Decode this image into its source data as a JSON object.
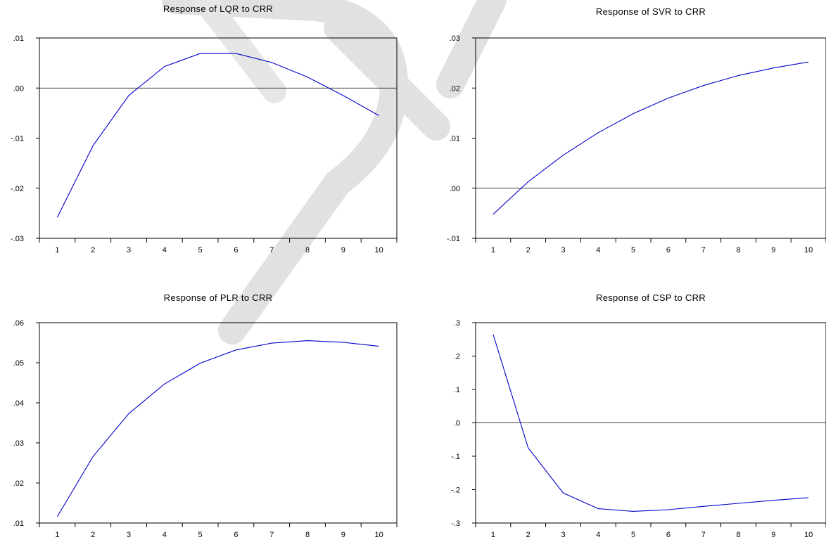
{
  "chart_data": [
    {
      "type": "line",
      "title": "Response of LQR to CRR",
      "x": [
        1,
        2,
        3,
        4,
        5,
        6,
        7,
        8,
        9,
        10
      ],
      "series": [
        {
          "values": [
            -0.0258,
            -0.0115,
            -0.0015,
            0.0043,
            0.0069,
            0.0069,
            0.0051,
            0.0022,
            -0.0015,
            -0.0055
          ]
        }
      ],
      "xlim": [
        0.5,
        10.5
      ],
      "ylim": [
        -0.03,
        0.01
      ],
      "yticks": [
        -0.03,
        -0.02,
        -0.01,
        0.0,
        0.01
      ],
      "ytick_labels": [
        "-.03",
        "-.02",
        "-.01",
        ".00",
        ".01"
      ],
      "xticks": [
        1,
        2,
        3,
        4,
        5,
        6,
        7,
        8,
        9,
        10
      ],
      "xtick_labels": [
        "1",
        "2",
        "3",
        "4",
        "5",
        "6",
        "7",
        "8",
        "9",
        "10"
      ],
      "zero_line": true,
      "grid": false,
      "line_color": "#0000cc"
    },
    {
      "type": "line",
      "title": "Response of SVR to CRR",
      "x": [
        1,
        2,
        3,
        4,
        5,
        6,
        7,
        8,
        9,
        10
      ],
      "series": [
        {
          "values": [
            -0.0052,
            0.0013,
            0.0066,
            0.0111,
            0.0149,
            0.018,
            0.0205,
            0.0225,
            0.024,
            0.0252
          ]
        }
      ],
      "xlim": [
        0.5,
        10.5
      ],
      "ylim": [
        -0.01,
        0.03
      ],
      "yticks": [
        -0.01,
        0.0,
        0.01,
        0.02,
        0.03
      ],
      "ytick_labels": [
        "-.01",
        ".00",
        ".01",
        ".02",
        ".03"
      ],
      "xticks": [
        1,
        2,
        3,
        4,
        5,
        6,
        7,
        8,
        9,
        10
      ],
      "xtick_labels": [
        "1",
        "2",
        "3",
        "4",
        "5",
        "6",
        "7",
        "8",
        "9",
        "10"
      ],
      "zero_line": true,
      "grid": false,
      "line_color": "#0000cc"
    },
    {
      "type": "line",
      "title": "Response of PLR to CRR",
      "x": [
        1,
        2,
        3,
        4,
        5,
        6,
        7,
        8,
        9,
        10
      ],
      "series": [
        {
          "values": [
            0.0116,
            0.0266,
            0.0373,
            0.0447,
            0.0499,
            0.0532,
            0.0549,
            0.0555,
            0.0551,
            0.0541
          ]
        }
      ],
      "xlim": [
        0.5,
        10.5
      ],
      "ylim": [
        0.01,
        0.06
      ],
      "yticks": [
        0.01,
        0.02,
        0.03,
        0.04,
        0.05,
        0.06
      ],
      "ytick_labels": [
        ".01",
        ".02",
        ".03",
        ".04",
        ".05",
        ".06"
      ],
      "xticks": [
        1,
        2,
        3,
        4,
        5,
        6,
        7,
        8,
        9,
        10
      ],
      "xtick_labels": [
        "1",
        "2",
        "3",
        "4",
        "5",
        "6",
        "7",
        "8",
        "9",
        "10"
      ],
      "zero_line": false,
      "grid": false,
      "line_color": "#0000cc"
    },
    {
      "type": "line",
      "title": "Response of CSP to CRR",
      "x": [
        1,
        2,
        3,
        4,
        5,
        6,
        7,
        8,
        9,
        10
      ],
      "series": [
        {
          "values": [
            0.265,
            -0.075,
            -0.21,
            -0.257,
            -0.265,
            -0.26,
            -0.25,
            -0.241,
            -0.232,
            -0.224
          ]
        }
      ],
      "xlim": [
        0.5,
        10.5
      ],
      "ylim": [
        -0.3,
        0.3
      ],
      "yticks": [
        -0.3,
        -0.2,
        -0.1,
        0.0,
        0.1,
        0.2,
        0.3
      ],
      "ytick_labels": [
        "-.3",
        "-.2",
        "-.1",
        ".0",
        ".1",
        ".2",
        ".3"
      ],
      "xticks": [
        1,
        2,
        3,
        4,
        5,
        6,
        7,
        8,
        9,
        10
      ],
      "xtick_labels": [
        "1",
        "2",
        "3",
        "4",
        "5",
        "6",
        "7",
        "8",
        "9",
        "10"
      ],
      "zero_line": true,
      "grid": false,
      "line_color": "#0000cc"
    }
  ]
}
